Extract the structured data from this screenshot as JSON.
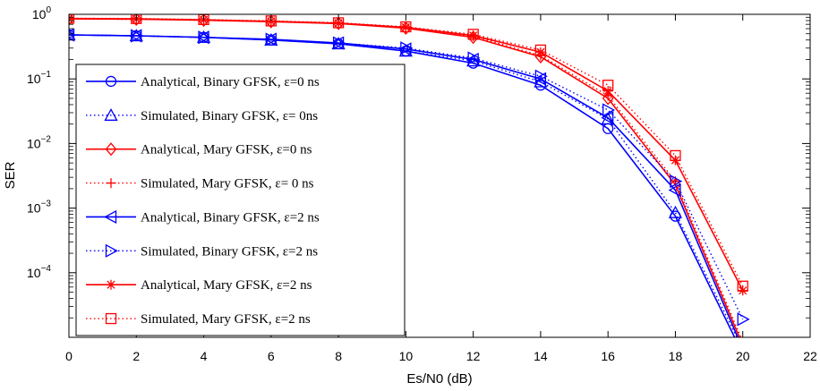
{
  "chart_data": {
    "type": "line",
    "title": "",
    "xlabel": "Es/N0 (dB)",
    "ylabel": "SER",
    "xlim": [
      0,
      22
    ],
    "ylim": [
      1e-05,
      1
    ],
    "yscale": "log",
    "xticks": [
      0,
      2,
      4,
      6,
      8,
      10,
      12,
      14,
      16,
      18,
      20,
      22
    ],
    "yticks": [
      {
        "value": 1,
        "base": "10",
        "exp": "0"
      },
      {
        "value": 0.1,
        "base": "10",
        "exp": "−1"
      },
      {
        "value": 0.01,
        "base": "10",
        "exp": "−2"
      },
      {
        "value": 0.001,
        "base": "10",
        "exp": "−3"
      },
      {
        "value": 0.0001,
        "base": "10",
        "exp": "−4"
      }
    ],
    "grid": false,
    "legend_position": "left",
    "series": [
      {
        "name": "Analytical, Binary GFSK, ε=0 ns",
        "color": "#0000ff",
        "line": "solid",
        "marker": "circle",
        "x": [
          0,
          2,
          4,
          6,
          8,
          10,
          12,
          14,
          16,
          18,
          20
        ],
        "y": [
          0.48,
          0.465,
          0.44,
          0.4,
          0.35,
          0.27,
          0.175,
          0.08,
          0.017,
          0.00075,
          5.5e-06
        ]
      },
      {
        "name": "Simulated, Binary GFSK, ε= 0ns",
        "color": "#0000ff",
        "line": "dotted",
        "marker": "triangle-up",
        "x": [
          0,
          2,
          4,
          6,
          8,
          10,
          12,
          14,
          16,
          18,
          20
        ],
        "y": [
          0.48,
          0.465,
          0.44,
          0.4,
          0.35,
          0.27,
          0.19,
          0.09,
          0.024,
          0.00085,
          6.5e-06
        ]
      },
      {
        "name": "Analytical, Mary GFSK, ε=0 ns",
        "color": "#ff0000",
        "line": "solid",
        "marker": "diamond",
        "x": [
          0,
          2,
          4,
          6,
          8,
          10,
          12,
          14,
          16,
          18,
          20
        ],
        "y": [
          0.85,
          0.84,
          0.81,
          0.77,
          0.72,
          0.61,
          0.44,
          0.22,
          0.05,
          0.0023,
          7.5e-06
        ]
      },
      {
        "name": "Simulated, Mary GFSK, ε= 0 ns",
        "color": "#ff0000",
        "line": "dotted",
        "marker": "plus",
        "x": [
          0,
          2,
          4,
          6,
          8,
          10,
          12,
          14,
          16,
          18,
          20
        ],
        "y": [
          0.85,
          0.84,
          0.81,
          0.77,
          0.72,
          0.62,
          0.46,
          0.23,
          0.055,
          0.0026,
          8.5e-06
        ]
      },
      {
        "name": "Analytical, Binary GFSK, ε=2 ns",
        "color": "#0000ff",
        "line": "solid",
        "marker": "triangle-left",
        "x": [
          0,
          2,
          4,
          6,
          8,
          10,
          12,
          14,
          16,
          18,
          20
        ],
        "y": [
          0.48,
          0.465,
          0.44,
          0.41,
          0.36,
          0.29,
          0.2,
          0.1,
          0.025,
          0.0019,
          6.5e-06
        ]
      },
      {
        "name": "Simulated, Binary GFSK, ε=2 ns",
        "color": "#0000ff",
        "line": "dotted",
        "marker": "triangle-right",
        "x": [
          0,
          2,
          4,
          6,
          8,
          10,
          12,
          14,
          16,
          18,
          20
        ],
        "y": [
          0.48,
          0.465,
          0.44,
          0.41,
          0.36,
          0.3,
          0.21,
          0.11,
          0.033,
          0.0026,
          1.9e-05
        ]
      },
      {
        "name": "Analytical, Mary GFSK, ε=2 ns",
        "color": "#ff0000",
        "line": "solid",
        "marker": "asterisk",
        "x": [
          0,
          2,
          4,
          6,
          8,
          10,
          12,
          14,
          16,
          18,
          20
        ],
        "y": [
          0.86,
          0.85,
          0.82,
          0.78,
          0.73,
          0.63,
          0.47,
          0.26,
          0.065,
          0.0055,
          5.3e-05
        ]
      },
      {
        "name": "Simulated, Mary GFSK, ε=2 ns",
        "color": "#ff0000",
        "line": "dotted",
        "marker": "square",
        "x": [
          0,
          2,
          4,
          6,
          8,
          10,
          12,
          14,
          16,
          18,
          20
        ],
        "y": [
          0.87,
          0.86,
          0.83,
          0.79,
          0.74,
          0.64,
          0.49,
          0.28,
          0.08,
          0.0065,
          6.2e-05
        ]
      }
    ]
  }
}
